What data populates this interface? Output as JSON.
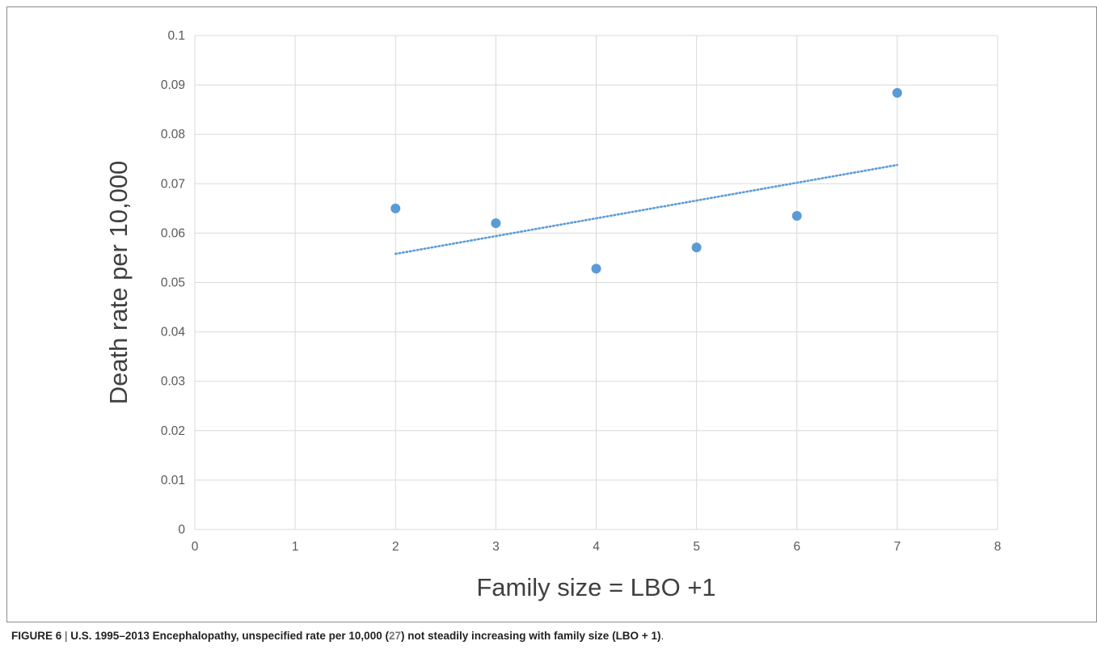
{
  "chart_data": {
    "type": "scatter",
    "title": "",
    "xlabel": "Family size = LBO +1",
    "ylabel": "Death rate per 10,000",
    "xlim": [
      0,
      8
    ],
    "ylim": [
      0,
      0.1
    ],
    "x_ticks": [
      0,
      1,
      2,
      3,
      4,
      5,
      6,
      7,
      8
    ],
    "y_ticks": [
      0,
      0.01,
      0.02,
      0.03,
      0.04,
      0.05,
      0.06,
      0.07,
      0.08,
      0.09,
      0.1
    ],
    "grid": true,
    "legend": "none",
    "series": [
      {
        "x": [
          2,
          3,
          4,
          5,
          6,
          7
        ],
        "y": [
          0.065,
          0.062,
          0.0528,
          0.0571,
          0.0635,
          0.0884
        ],
        "color": "#5b9bd5",
        "trendline": {
          "type": "linear",
          "style": "dotted",
          "x_range": [
            2,
            7
          ],
          "y_start": 0.0558,
          "y_end": 0.0738
        }
      }
    ]
  },
  "caption": {
    "label": "FIGURE 6",
    "separator": " | ",
    "text_before_ref": "U.S. 1995–2013 Encephalopathy, unspecified rate per 10,000 (",
    "ref": "27",
    "text_after_ref": ") not steadily increasing with family size (LBO + 1)",
    "end": "."
  }
}
